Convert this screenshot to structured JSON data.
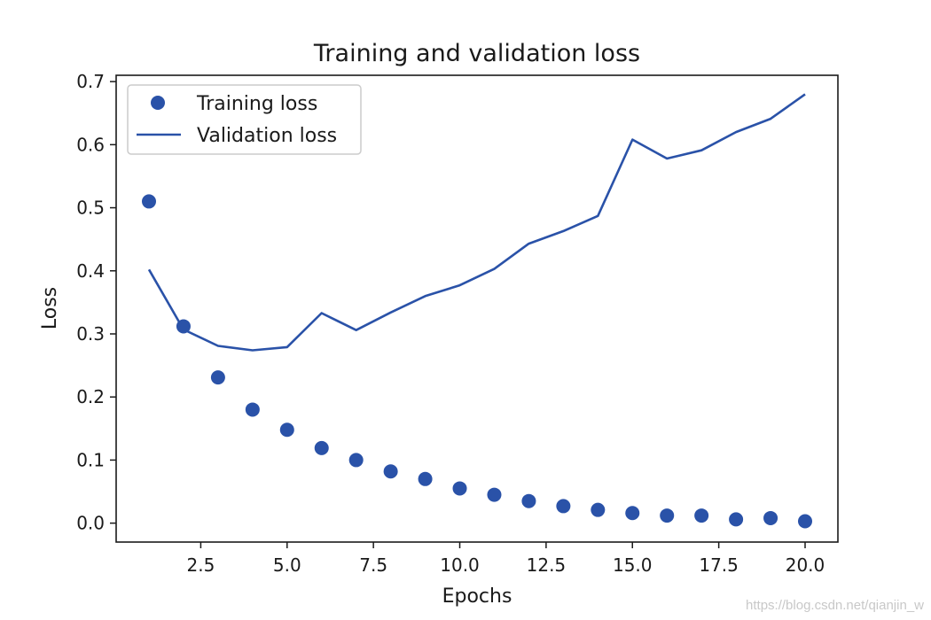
{
  "chart_data": {
    "type": "line",
    "title": "Training and validation loss",
    "xlabel": "Epochs",
    "ylabel": "Loss",
    "xlim": [
      0.05,
      20.95
    ],
    "ylim": [
      -0.03,
      0.71
    ],
    "xticks": [
      2.5,
      5.0,
      7.5,
      10.0,
      12.5,
      15.0,
      17.5,
      20.0
    ],
    "xtick_labels": [
      "2.5",
      "5.0",
      "7.5",
      "10.0",
      "12.5",
      "15.0",
      "17.5",
      "20.0"
    ],
    "yticks": [
      0.0,
      0.1,
      0.2,
      0.3,
      0.4,
      0.5,
      0.6,
      0.7
    ],
    "ytick_labels": [
      "0.0",
      "0.1",
      "0.2",
      "0.3",
      "0.4",
      "0.5",
      "0.6",
      "0.7"
    ],
    "grid": false,
    "legend_position": "top-left",
    "series": [
      {
        "name": "Training loss",
        "style": "markers",
        "color": "#2a52a8",
        "x": [
          1,
          2,
          3,
          4,
          5,
          6,
          7,
          8,
          9,
          10,
          11,
          12,
          13,
          14,
          15,
          16,
          17,
          18,
          19,
          20
        ],
        "y": [
          0.51,
          0.312,
          0.231,
          0.18,
          0.148,
          0.119,
          0.1,
          0.082,
          0.07,
          0.055,
          0.045,
          0.035,
          0.027,
          0.021,
          0.016,
          0.012,
          0.012,
          0.006,
          0.008,
          0.003
        ]
      },
      {
        "name": "Validation loss",
        "style": "line",
        "color": "#2a52a8",
        "x": [
          1,
          2,
          3,
          4,
          5,
          6,
          7,
          8,
          9,
          10,
          11,
          12,
          13,
          14,
          15,
          16,
          17,
          18,
          19,
          20
        ],
        "y": [
          0.402,
          0.307,
          0.281,
          0.274,
          0.279,
          0.333,
          0.306,
          0.334,
          0.36,
          0.377,
          0.403,
          0.443,
          0.463,
          0.487,
          0.608,
          0.578,
          0.591,
          0.62,
          0.641,
          0.68
        ]
      }
    ]
  },
  "watermark": "https://blog.csdn.net/qianjin_w"
}
